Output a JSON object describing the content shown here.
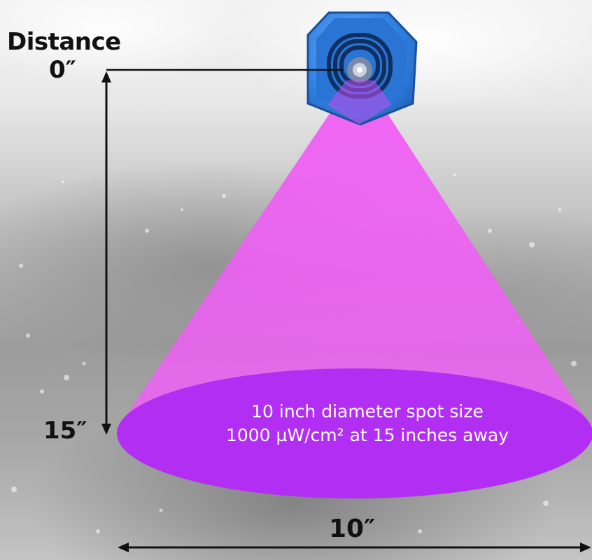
{
  "labels": {
    "distance": "Distance",
    "zero": "0″",
    "fifteen": "15″",
    "ten": "10″"
  },
  "spot": {
    "line1": "10 inch diameter spot size",
    "line2": "1000 µW/cm² at 15 inches away"
  },
  "colors": {
    "beam": "#f25cf5",
    "spot": "#b42ef0",
    "device_body": "#2f7fe0",
    "device_dark": "#113b77",
    "text": "#111111"
  },
  "icons": {
    "device": "uv-led-device-icon"
  }
}
